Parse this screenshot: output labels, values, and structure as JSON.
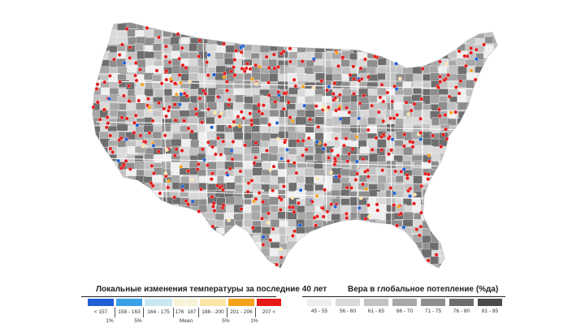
{
  "temperature_legend": {
    "title": "Локальные изменения температуры за последние 40 лет",
    "ranges": [
      {
        "label": "< 157",
        "color": "#1f5fd6"
      },
      {
        "label": "158 - 163",
        "color": "#3aa0e8"
      },
      {
        "label": "164 - 175",
        "color": "#c8e9f2"
      },
      {
        "label": "176",
        "color": "#f6f3d6"
      },
      {
        "label": "187",
        "color": "#f6f3d6"
      },
      {
        "label": "188 - 200",
        "color": "#fbe5a6"
      },
      {
        "label": "201 - 206",
        "color": "#f5a21a"
      },
      {
        "label": "207 <",
        "color": "#e61919"
      }
    ],
    "markers": [
      "1%",
      "5%",
      "Mean",
      "5%",
      "1%"
    ]
  },
  "belief_legend": {
    "title": "Вера в глобальное потепление (%да)",
    "ranges": [
      {
        "label": "45 - 55",
        "color": "#efefef"
      },
      {
        "label": "56 - 60",
        "color": "#d9d9d9"
      },
      {
        "label": "61 - 65",
        "color": "#c2c2c2"
      },
      {
        "label": "66 - 70",
        "color": "#a8a8a8"
      },
      {
        "label": "71 - 75",
        "color": "#8e8e8e"
      },
      {
        "label": "76 - 80",
        "color": "#6e6e6e"
      },
      {
        "label": "81 - 85",
        "color": "#4a4a4a"
      }
    ]
  },
  "map": {
    "land_color": "#c9c9c9",
    "border_color": "#ffffff",
    "station_colors": {
      "warm": "#e61919",
      "cold": "#1f5fd6",
      "neutral": "#fbe5a6",
      "orange": "#f5a21a"
    }
  }
}
